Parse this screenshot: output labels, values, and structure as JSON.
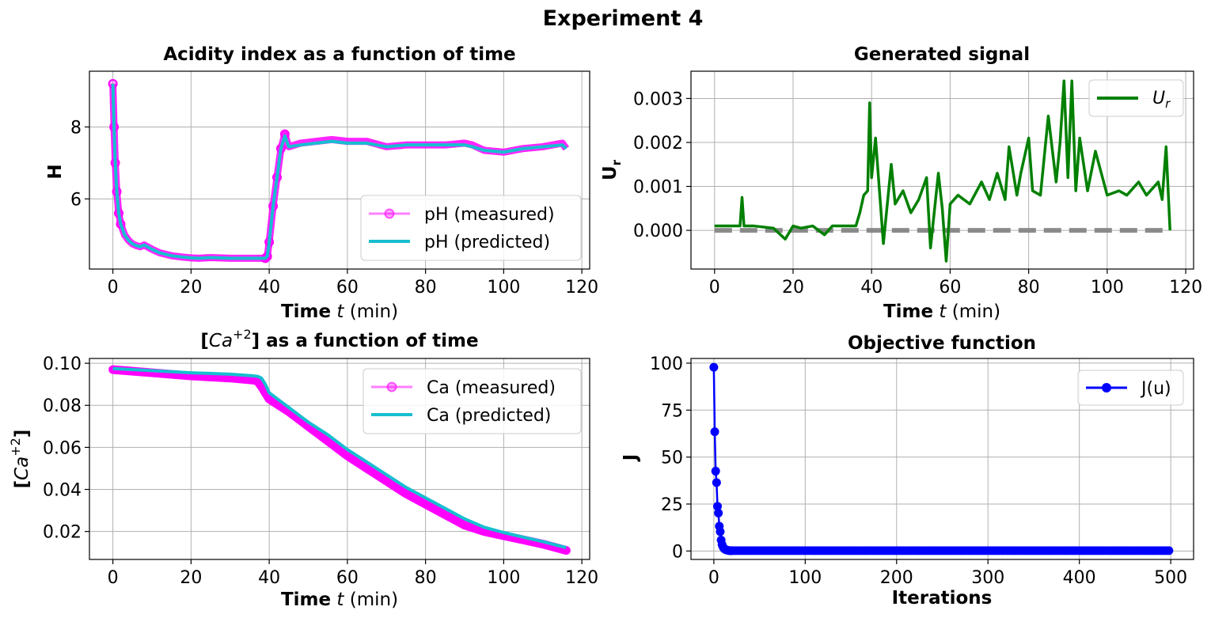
{
  "figure": {
    "suptitle": "Experiment 4"
  },
  "chart_data": [
    {
      "id": "ph",
      "type": "line",
      "title": "Acidity index as a function of time",
      "xlabel_bold": "Time",
      "xlabel_italic": "t",
      "xlabel_rest": "(min)",
      "ylabel": "H",
      "xlim": [
        -6,
        122
      ],
      "ylim": [
        4.05,
        9.55
      ],
      "xticks": [
        0,
        20,
        40,
        60,
        80,
        100,
        120
      ],
      "yticks": [
        6,
        8
      ],
      "x": [
        0,
        0.3,
        0.6,
        1,
        1.5,
        2,
        3,
        4,
        5,
        6,
        7,
        8,
        10,
        12,
        15,
        18,
        20,
        22,
        25,
        30,
        35,
        39,
        39.5,
        40,
        41,
        42,
        43,
        44,
        45,
        48,
        52,
        56,
        60,
        65,
        70,
        75,
        80,
        85,
        90,
        92,
        95,
        100,
        105,
        110,
        115,
        116
      ],
      "series": [
        {
          "name": "pH (measured)",
          "color": "#ff00ff",
          "values": [
            9.2,
            8.0,
            7.0,
            6.2,
            5.6,
            5.3,
            5.0,
            4.85,
            4.75,
            4.7,
            4.67,
            4.72,
            4.6,
            4.5,
            4.42,
            4.38,
            4.36,
            4.35,
            4.37,
            4.35,
            4.35,
            4.35,
            4.4,
            4.8,
            5.8,
            6.6,
            7.4,
            7.8,
            7.45,
            7.55,
            7.6,
            7.65,
            7.6,
            7.6,
            7.45,
            7.5,
            7.5,
            7.5,
            7.55,
            7.5,
            7.35,
            7.3,
            7.4,
            7.45,
            7.55,
            7.4
          ]
        },
        {
          "name": "pH (predicted)",
          "color": "#17becf",
          "values": [
            9.2,
            8.0,
            7.0,
            6.2,
            5.6,
            5.3,
            5.0,
            4.85,
            4.75,
            4.7,
            4.67,
            4.72,
            4.6,
            4.5,
            4.42,
            4.38,
            4.36,
            4.35,
            4.37,
            4.35,
            4.35,
            4.35,
            4.4,
            4.8,
            5.8,
            6.6,
            7.4,
            7.75,
            7.45,
            7.5,
            7.55,
            7.6,
            7.55,
            7.55,
            7.45,
            7.5,
            7.5,
            7.5,
            7.5,
            7.45,
            7.35,
            7.3,
            7.4,
            7.45,
            7.5,
            7.4
          ]
        }
      ],
      "legend_labels": [
        "pH (measured)",
        "pH (predicted)"
      ],
      "legend_loc": "lower right"
    },
    {
      "id": "ur",
      "type": "line",
      "title": "Generated signal",
      "xlabel_bold": "Time",
      "xlabel_italic": "t",
      "xlabel_rest": "(min)",
      "ylabel": "U",
      "ylabel_sub": "r",
      "xlim": [
        -6,
        122
      ],
      "ylim": [
        -0.00088,
        0.00362
      ],
      "xticks": [
        0,
        20,
        40,
        60,
        80,
        100,
        120
      ],
      "yticks": [
        0.0,
        0.001,
        0.002,
        0.003
      ],
      "ytick_labels": [
        "0.000",
        "0.001",
        "0.002",
        "0.003"
      ],
      "reference_line": {
        "y": 0.0,
        "color": "#808080"
      },
      "x": [
        0,
        5,
        6.5,
        7,
        7.5,
        10,
        15,
        18,
        20,
        22,
        25,
        28,
        30,
        33,
        36,
        37,
        38,
        39,
        39.5,
        40,
        41,
        42,
        43,
        45,
        46,
        48,
        50,
        52,
        54,
        55,
        57,
        58,
        59,
        60,
        62,
        65,
        68,
        70,
        72,
        74,
        75,
        77,
        78,
        80,
        81,
        83,
        85,
        87,
        88,
        89,
        90,
        91,
        92,
        93,
        95,
        97,
        100,
        103,
        105,
        108,
        110,
        112,
        113,
        114,
        115,
        116
      ],
      "series": [
        {
          "name": "U_r",
          "color": "#008000",
          "values": [
            0.0001,
            0.0001,
            0.0001,
            0.00075,
            0.0001,
            0.0001,
            5e-05,
            -0.0002,
            0.0001,
            5e-05,
            0.0001,
            -0.0001,
            0.0001,
            0.0001,
            0.0001,
            0.0004,
            0.0008,
            0.0009,
            0.0029,
            0.0012,
            0.0021,
            0.0009,
            -0.0003,
            0.0015,
            0.0006,
            0.0009,
            0.0004,
            0.0007,
            0.0012,
            -0.0004,
            0.0013,
            0.0005,
            -0.0007,
            0.0006,
            0.0008,
            0.0006,
            0.0011,
            0.0007,
            0.0013,
            0.0007,
            0.0019,
            0.0008,
            0.0013,
            0.0021,
            0.0009,
            0.0008,
            0.0026,
            0.0011,
            0.002,
            0.0034,
            0.0012,
            0.0034,
            0.0009,
            0.0021,
            0.0009,
            0.0018,
            0.0008,
            0.0009,
            0.0008,
            0.0011,
            0.0008,
            0.001,
            0.0011,
            0.0007,
            0.0019,
            0.0
          ]
        }
      ],
      "legend_labels": [
        "U",
        "r"
      ],
      "legend_loc": "upper right"
    },
    {
      "id": "ca",
      "type": "line",
      "title_part1": "[",
      "title_math": "Ca",
      "title_sup": "+2",
      "title_part2": "] as a function of time",
      "xlabel_bold": "Time",
      "xlabel_italic": "t",
      "xlabel_rest": "(min)",
      "ylabel_open": "[",
      "ylabel_math": "Ca",
      "ylabel_sup": "+2",
      "ylabel_close": "]",
      "xlim": [
        -6,
        122
      ],
      "ylim": [
        0.0067,
        0.1023
      ],
      "xticks": [
        0,
        20,
        40,
        60,
        80,
        100,
        120
      ],
      "yticks": [
        0.02,
        0.04,
        0.06,
        0.08,
        0.1
      ],
      "ytick_labels": [
        "0.02",
        "0.04",
        "0.06",
        "0.08",
        "0.10"
      ],
      "x": [
        0,
        10,
        20,
        30,
        36,
        37,
        38,
        39,
        40,
        45,
        50,
        55,
        60,
        65,
        70,
        75,
        80,
        85,
        90,
        95,
        100,
        105,
        110,
        116
      ],
      "series": [
        {
          "name": "Ca (measured)",
          "color": "#ff00ff",
          "values": [
            0.097,
            0.0955,
            0.094,
            0.093,
            0.092,
            0.0915,
            0.089,
            0.086,
            0.083,
            0.077,
            0.07,
            0.063,
            0.056,
            0.05,
            0.044,
            0.038,
            0.033,
            0.028,
            0.023,
            0.02,
            0.018,
            0.016,
            0.014,
            0.011
          ]
        },
        {
          "name": "Ca (predicted)",
          "color": "#17becf",
          "values": [
            0.0975,
            0.0965,
            0.0955,
            0.0948,
            0.094,
            0.0938,
            0.093,
            0.09,
            0.086,
            0.079,
            0.072,
            0.066,
            0.059,
            0.053,
            0.047,
            0.041,
            0.036,
            0.031,
            0.026,
            0.022,
            0.0195,
            0.0173,
            0.0152,
            0.0123
          ]
        }
      ],
      "legend_labels": [
        "Ca (measured)",
        "Ca (predicted)"
      ],
      "legend_loc": "upper right"
    },
    {
      "id": "obj",
      "type": "line",
      "title": "Objective function",
      "xlabel": "Iterations",
      "ylabel": "J",
      "xlim": [
        -25,
        525
      ],
      "ylim": [
        -4.5,
        102.5
      ],
      "xticks": [
        0,
        100,
        200,
        300,
        400,
        500
      ],
      "yticks": [
        0,
        25,
        50,
        75,
        100
      ],
      "x": [
        0,
        1,
        2,
        3,
        4,
        5,
        6,
        7,
        8,
        9,
        10,
        11,
        12,
        13,
        14,
        15,
        16,
        17,
        18,
        19,
        20
      ],
      "series": [
        {
          "name": "J(u)",
          "color": "#0000ff",
          "values": [
            97.8,
            63.5,
            42.5,
            36.4,
            23.8,
            20.2,
            13.2,
            10.3,
            5.8,
            3.4,
            2.2,
            1.4,
            1.0,
            0.7,
            0.5,
            0.4,
            0.3,
            0.2,
            0.2,
            0.2,
            0.2
          ],
          "tail_from": 21,
          "tail_to": 500,
          "tail_value": 0.2
        }
      ],
      "legend_labels": [
        "J(u)"
      ],
      "legend_loc": "upper right"
    }
  ]
}
